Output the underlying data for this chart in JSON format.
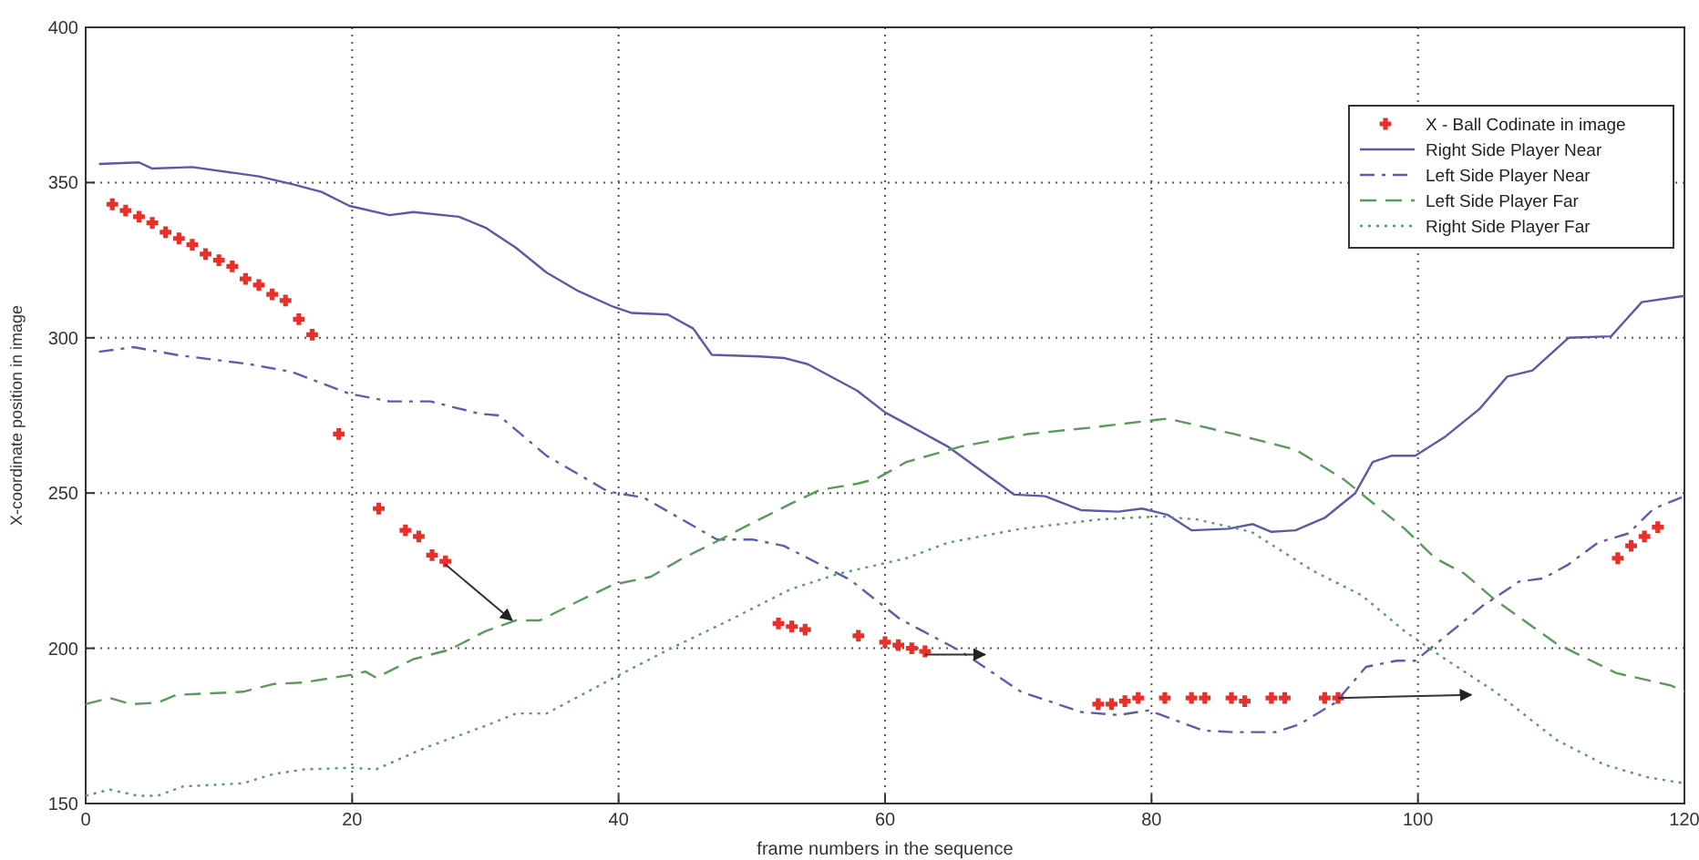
{
  "chart_data": {
    "type": "line",
    "xlabel": "frame numbers in the sequence",
    "ylabel": "X-coordinate position in image",
    "xlim": [
      0,
      120
    ],
    "ylim": [
      150,
      400
    ],
    "xticks": [
      0,
      20,
      40,
      60,
      80,
      100,
      120
    ],
    "yticks": [
      150,
      200,
      250,
      300,
      350,
      400
    ],
    "grid": true,
    "legend": "top right",
    "series": [
      {
        "name": "X - Ball Codinate in image",
        "type": "scatter",
        "marker": "cross",
        "color": "#e8302a",
        "x": [
          2,
          3,
          4,
          5,
          6,
          7,
          8,
          9,
          10,
          11,
          12,
          13,
          14,
          15,
          16,
          17,
          19,
          22,
          24,
          25,
          26,
          27,
          52,
          53,
          54,
          58,
          60,
          61,
          62,
          63,
          76,
          77,
          78,
          79,
          81,
          83,
          84,
          86,
          87,
          89,
          90,
          93,
          94,
          115,
          116,
          117,
          118
        ],
        "values": [
          343,
          341,
          339,
          337,
          334,
          332,
          330,
          327,
          325,
          323,
          319,
          317,
          314,
          312,
          306,
          301,
          269,
          245,
          238,
          236,
          230,
          228,
          208,
          207,
          206,
          204,
          202,
          201,
          200,
          199,
          182,
          182,
          183,
          184,
          184,
          184,
          184,
          184,
          183,
          184,
          184,
          184,
          184,
          229,
          233,
          236,
          239
        ]
      },
      {
        "name": "Right Side Player Near",
        "line_style": "solid",
        "color": "#5a5aa8",
        "x": [
          1,
          4,
          5,
          8,
          13,
          15.5,
          17.7,
          19.8,
          22.8,
          24.6,
          28,
          30,
          32.3,
          34.6,
          37,
          39.6,
          41,
          43.7,
          45.6,
          47,
          50.6,
          52.4,
          54.2,
          57.9,
          60,
          64.7,
          69.7,
          72,
          74.7,
          77.5,
          79.3,
          81.2,
          83,
          85.8,
          87.6,
          89,
          90.8,
          93,
          95.3,
          96.6,
          98,
          99.8,
          102,
          104.6,
          106.7,
          108.6,
          111.3,
          114.5,
          116.8,
          120
        ],
        "values": [
          356,
          356.5,
          354.5,
          355,
          352,
          349.5,
          347,
          342.5,
          339.5,
          340.5,
          339,
          335.5,
          329,
          321,
          315,
          310,
          308,
          307.5,
          303,
          294.5,
          294,
          293.5,
          291.5,
          283,
          276,
          265,
          249.5,
          249,
          244.5,
          244,
          245,
          243,
          238,
          238.5,
          240,
          237.5,
          238,
          242,
          250,
          260,
          262,
          262,
          268,
          277,
          287.5,
          289.5,
          300,
          300.5,
          311.5,
          313.5
        ]
      },
      {
        "name": "Left Side Player Near",
        "line_style": "dashdot",
        "color": "#5c5cb0",
        "x": [
          1,
          3.6,
          6.8,
          12.3,
          15.5,
          19.8,
          22.8,
          25.9,
          29.6,
          31,
          34.6,
          39.2,
          41.9,
          47.4,
          50.1,
          52.4,
          57.4,
          61.1,
          65.7,
          70.2,
          74.7,
          77.5,
          79.8,
          82,
          83.9,
          86.1,
          89.3,
          91.1,
          93.8,
          96.1,
          98.4,
          99.8,
          102.1,
          104.8,
          107.6,
          109.4,
          111.3,
          113.5,
          115.8,
          117.7,
          120
        ],
        "values": [
          295.5,
          297,
          294.5,
          291.5,
          289,
          282,
          279.5,
          279.5,
          275.5,
          275,
          262,
          250.5,
          248.5,
          235,
          235,
          233,
          222,
          209.5,
          199,
          186,
          179.5,
          178.5,
          180,
          176.5,
          173.5,
          173,
          173,
          175.5,
          182.5,
          194,
          196,
          196,
          204,
          213.5,
          221.5,
          222.5,
          227,
          234,
          237,
          245,
          249
        ]
      },
      {
        "name": "Left Side Player Far",
        "line_style": "dashed",
        "color": "#5a9a5a",
        "x": [
          0,
          1.8,
          3.4,
          5.4,
          6.8,
          9.5,
          11.8,
          14.1,
          16.4,
          20,
          21,
          21.8,
          24.6,
          27.3,
          30,
          32.3,
          34.1,
          36.9,
          39.6,
          42.4,
          44.6,
          47.4,
          50.1,
          52.9,
          55.1,
          57.9,
          59.3,
          61.6,
          65.7,
          70.7,
          75.3,
          81.2,
          86.2,
          90.8,
          94.4,
          99,
          101.3,
          103.5,
          105.8,
          110.4,
          114.9,
          119,
          120
        ],
        "values": [
          182,
          184,
          182,
          182.5,
          185,
          185.5,
          186,
          188.5,
          189,
          191.5,
          192.5,
          190.5,
          196.5,
          199.5,
          205.5,
          209,
          209,
          215,
          220.5,
          223,
          228.5,
          234.5,
          240.5,
          246.5,
          251,
          253,
          254.5,
          260,
          265,
          269,
          271,
          274,
          269,
          264,
          254.5,
          238.5,
          229,
          224,
          215.5,
          201.5,
          192,
          188,
          186
        ]
      },
      {
        "name": "Right Side Player Far",
        "line_style": "dotted",
        "color": "#5a9a6a",
        "x": [
          0,
          1.8,
          3.9,
          5.4,
          7.3,
          11.8,
          14.1,
          16.4,
          20,
          21.8,
          25.5,
          30,
          32.3,
          34.6,
          39.2,
          43.7,
          48.3,
          52.9,
          56.5,
          61.6,
          64.7,
          70.2,
          76.1,
          80.6,
          83.4,
          87.5,
          92.1,
          95.8,
          99,
          101.7,
          105.8,
          110.4,
          114,
          117.2,
          120
        ],
        "values": [
          152.5,
          154.5,
          152.5,
          152.5,
          155.5,
          156.5,
          159.5,
          161,
          161.5,
          161,
          168,
          175,
          179,
          179,
          189.5,
          199.5,
          209,
          219,
          224,
          229,
          234,
          238.5,
          241.5,
          242.5,
          241.5,
          237.5,
          225,
          217,
          205.5,
          197.5,
          186,
          170.5,
          162.5,
          158.5,
          156.5
        ]
      }
    ]
  }
}
